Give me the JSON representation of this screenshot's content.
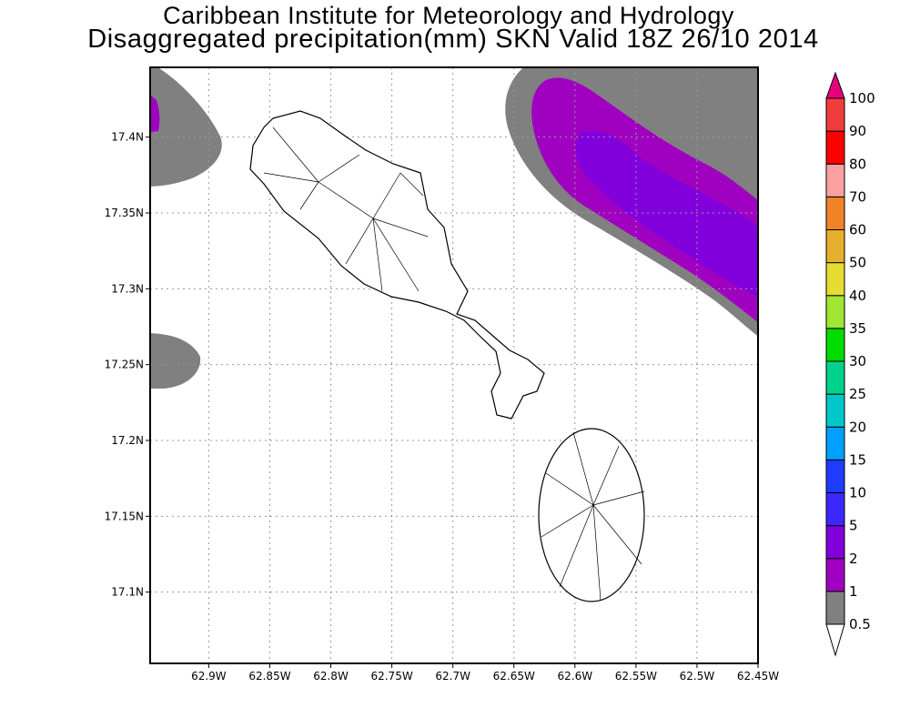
{
  "header": {
    "title_line1": "Caribbean Institute for Meteorology and Hydrology",
    "title_line2": "Disaggregated precipitation(mm) SKN Valid 18Z 26/10 2014"
  },
  "map": {
    "lon_range_w": [
      62.948,
      62.45
    ],
    "lat_range_n": [
      17.053,
      17.446
    ],
    "lon_ticks": [
      "62.9W",
      "62.85W",
      "62.8W",
      "62.75W",
      "62.7W",
      "62.65W",
      "62.6W",
      "62.55W",
      "62.5W",
      "62.45W"
    ],
    "lon_tick_values": [
      62.9,
      62.85,
      62.8,
      62.75,
      62.7,
      62.65,
      62.6,
      62.55,
      62.5,
      62.45
    ],
    "lat_ticks": [
      "17.4N",
      "17.35N",
      "17.3N",
      "17.25N",
      "17.2N",
      "17.15N",
      "17.1N"
    ],
    "lat_tick_values": [
      17.4,
      17.35,
      17.3,
      17.25,
      17.2,
      17.15,
      17.1
    ],
    "islands": [
      "St Kitts",
      "Nevis"
    ]
  },
  "colorbar": {
    "labels": [
      "0.5",
      "1",
      "2",
      "5",
      "10",
      "15",
      "20",
      "25",
      "30",
      "35",
      "40",
      "50",
      "60",
      "70",
      "80",
      "90",
      "100"
    ],
    "colors": [
      "#808080",
      "#a000c0",
      "#8200dc",
      "#3c28ff",
      "#1e3cff",
      "#00a0ff",
      "#00c8c8",
      "#00d28c",
      "#00dc00",
      "#a0e632",
      "#e6dc32",
      "#e6af2d",
      "#f08228",
      "#faa0a0",
      "#ff0000",
      "#f03c3c"
    ],
    "over_color": "#e6007e",
    "under_color": "#ffffff"
  }
}
